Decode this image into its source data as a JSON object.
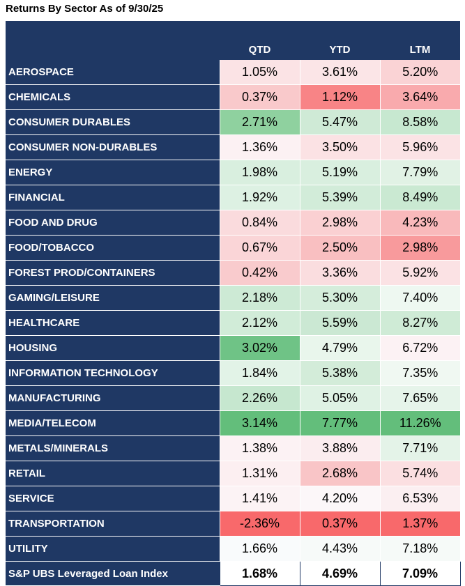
{
  "title": "Returns By Sector As of 9/30/25",
  "table": {
    "header": {
      "sector": "",
      "columns": [
        "QTD",
        "YTD",
        "LTM"
      ]
    },
    "rows": [
      {
        "label": "AEROSPACE",
        "values": [
          "1.05%",
          "3.61%",
          "5.20%"
        ],
        "colors": [
          "#FBE3E5",
          "#FBE5E7",
          "#FAD3D5"
        ]
      },
      {
        "label": "CHEMICALS",
        "values": [
          "0.37%",
          "1.12%",
          "3.64%"
        ],
        "colors": [
          "#F9C9CB",
          "#F88486",
          "#F9AAAD"
        ]
      },
      {
        "label": "CONSUMER DURABLES",
        "values": [
          "2.71%",
          "5.47%",
          "8.58%"
        ],
        "colors": [
          "#8FD19F",
          "#CFEAD6",
          "#C7E8D0"
        ]
      },
      {
        "label": "CONSUMER NON-DURABLES",
        "values": [
          "1.36%",
          "3.50%",
          "5.96%"
        ],
        "colors": [
          "#FCF1F3",
          "#FBE2E4",
          "#FBE3E5"
        ]
      },
      {
        "label": "ENERGY",
        "values": [
          "1.98%",
          "5.19%",
          "7.79%"
        ],
        "colors": [
          "#D9EFDF",
          "#D9EFDF",
          "#E1F2E5"
        ]
      },
      {
        "label": "FINANCIAL",
        "values": [
          "1.92%",
          "5.39%",
          "8.49%"
        ],
        "colors": [
          "#DDF1E3",
          "#D2ECD9",
          "#CAE9D2"
        ]
      },
      {
        "label": "FOOD AND DRUG",
        "values": [
          "0.84%",
          "2.98%",
          "4.23%"
        ],
        "colors": [
          "#FADBDD",
          "#FAD0D2",
          "#F9B9BB"
        ]
      },
      {
        "label": "FOOD/TOBACCO",
        "values": [
          "0.67%",
          "2.50%",
          "2.98%"
        ],
        "colors": [
          "#FAD5D7",
          "#F9BFC1",
          "#F89A9C"
        ]
      },
      {
        "label": "FOREST PROD/CONTAINERS",
        "values": [
          "0.42%",
          "3.36%",
          "5.92%"
        ],
        "colors": [
          "#F9CBCD",
          "#FADDDF",
          "#FBE2E4"
        ]
      },
      {
        "label": "GAMING/LEISURE",
        "values": [
          "2.18%",
          "5.30%",
          "7.40%"
        ],
        "colors": [
          "#CDEAD5",
          "#D5EDDB",
          "#EEF8F1"
        ]
      },
      {
        "label": "HEALTHCARE",
        "values": [
          "2.12%",
          "5.59%",
          "8.27%"
        ],
        "colors": [
          "#D1ECD8",
          "#CBE8D3",
          "#CFEBD6"
        ]
      },
      {
        "label": "HOUSING",
        "values": [
          "3.02%",
          "4.79%",
          "6.72%"
        ],
        "colors": [
          "#6FC386",
          "#E9F6EC",
          "#FCF2F4"
        ]
      },
      {
        "label": "INFORMATION TECHNOLOGY",
        "values": [
          "1.84%",
          "5.38%",
          "7.35%"
        ],
        "colors": [
          "#E2F3E7",
          "#D3ECD9",
          "#F0F8F2"
        ]
      },
      {
        "label": "MANUFACTURING",
        "values": [
          "2.26%",
          "5.05%",
          "7.65%"
        ],
        "colors": [
          "#C6E7CF",
          "#DFF2E4",
          "#E6F4EA"
        ]
      },
      {
        "label": "MEDIA/TELECOM",
        "values": [
          "3.14%",
          "7.77%",
          "11.26%"
        ],
        "colors": [
          "#63BE7B",
          "#63BE7B",
          "#63BE7B"
        ]
      },
      {
        "label": "METALS/MINERALS",
        "values": [
          "1.38%",
          "3.88%",
          "7.71%"
        ],
        "colors": [
          "#FCF2F4",
          "#FBEDEF",
          "#E4F3E8"
        ]
      },
      {
        "label": "RETAIL",
        "values": [
          "1.31%",
          "2.68%",
          "5.74%"
        ],
        "colors": [
          "#FCEFF1",
          "#F9C5C7",
          "#FBDFE1"
        ]
      },
      {
        "label": "SERVICE",
        "values": [
          "1.41%",
          "4.20%",
          "6.53%"
        ],
        "colors": [
          "#FCF3F5",
          "#FCF7F9",
          "#FBEFF1"
        ]
      },
      {
        "label": "TRANSPORTATION",
        "values": [
          "-2.36%",
          "0.37%",
          "1.37%"
        ],
        "colors": [
          "#F8696B",
          "#F8696B",
          "#F8696B"
        ]
      },
      {
        "label": "UTILITY",
        "values": [
          "1.66%",
          "4.43%",
          "7.18%"
        ],
        "colors": [
          "#F9FBFC",
          "#F7FAF9",
          "#F6FAF8"
        ]
      }
    ],
    "footer": {
      "label": "S&P UBS Leveraged Loan Index",
      "values": [
        "1.68%",
        "4.69%",
        "7.09%"
      ]
    }
  }
}
